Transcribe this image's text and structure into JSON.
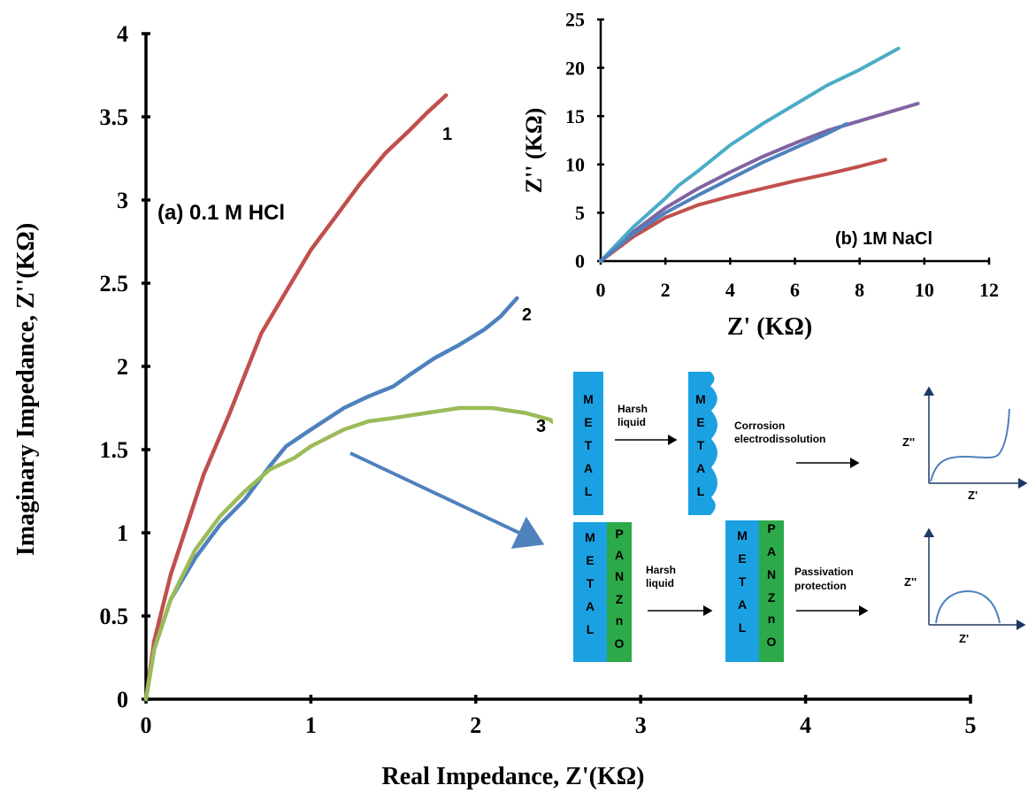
{
  "chart_data": [
    {
      "type": "line",
      "xlabel": "Real Impedance, Z'(KΩ)",
      "ylabel": "Imaginary  Impedance, Z''(KΩ)",
      "annotation": "(a) 0.1 M HCl",
      "xlim": [
        0,
        5
      ],
      "ylim": [
        0,
        4
      ],
      "x_ticks": [
        "0",
        "1",
        "2",
        "3",
        "4",
        "5"
      ],
      "y_ticks": [
        "0",
        "0.5",
        "1",
        "1.5",
        "2",
        "2.5",
        "3",
        "3.5",
        "4"
      ],
      "grid": false,
      "series": [
        {
          "name": "1",
          "color": "#c0504d",
          "points": [
            [
              0,
              0
            ],
            [
              0.05,
              0.35
            ],
            [
              0.15,
              0.75
            ],
            [
              0.25,
              1.05
            ],
            [
              0.35,
              1.35
            ],
            [
              0.5,
              1.7
            ],
            [
              0.6,
              1.95
            ],
            [
              0.7,
              2.2
            ],
            [
              0.85,
              2.45
            ],
            [
              1.0,
              2.7
            ],
            [
              1.15,
              2.9
            ],
            [
              1.3,
              3.1
            ],
            [
              1.45,
              3.28
            ],
            [
              1.6,
              3.42
            ],
            [
              1.7,
              3.52
            ],
            [
              1.82,
              3.63
            ]
          ]
        },
        {
          "name": "2",
          "color": "#4f81bd",
          "points": [
            [
              0,
              0
            ],
            [
              0.05,
              0.3
            ],
            [
              0.15,
              0.6
            ],
            [
              0.3,
              0.85
            ],
            [
              0.45,
              1.05
            ],
            [
              0.6,
              1.2
            ],
            [
              0.75,
              1.4
            ],
            [
              0.85,
              1.52
            ],
            [
              1.0,
              1.62
            ],
            [
              1.2,
              1.75
            ],
            [
              1.35,
              1.82
            ],
            [
              1.5,
              1.88
            ],
            [
              1.6,
              1.95
            ],
            [
              1.75,
              2.05
            ],
            [
              1.9,
              2.13
            ],
            [
              2.05,
              2.22
            ],
            [
              2.15,
              2.3
            ],
            [
              2.25,
              2.41
            ]
          ]
        },
        {
          "name": "3",
          "color": "#9bbb59",
          "points": [
            [
              0,
              0
            ],
            [
              0.05,
              0.3
            ],
            [
              0.15,
              0.6
            ],
            [
              0.3,
              0.9
            ],
            [
              0.45,
              1.1
            ],
            [
              0.6,
              1.25
            ],
            [
              0.75,
              1.38
            ],
            [
              0.9,
              1.45
            ],
            [
              1.0,
              1.52
            ],
            [
              1.2,
              1.62
            ],
            [
              1.35,
              1.67
            ],
            [
              1.5,
              1.69
            ],
            [
              1.7,
              1.72
            ],
            [
              1.9,
              1.75
            ],
            [
              2.1,
              1.75
            ],
            [
              2.3,
              1.72
            ],
            [
              2.45,
              1.68
            ],
            [
              2.55,
              1.6
            ]
          ]
        }
      ],
      "series_labels": [
        "1",
        "2",
        "3"
      ]
    },
    {
      "type": "line",
      "xlabel": "Z'  (KΩ)",
      "ylabel": "Z''  (KΩ)",
      "annotation": "(b) 1M NaCl",
      "xlim": [
        0,
        12
      ],
      "ylim": [
        0,
        25
      ],
      "x_ticks": [
        "0",
        "2",
        "4",
        "6",
        "8",
        "10",
        "12"
      ],
      "y_ticks": [
        "0",
        "5",
        "10",
        "15",
        "20",
        "25"
      ],
      "grid": false,
      "series": [
        {
          "color": "#c0504d",
          "points": [
            [
              0,
              0
            ],
            [
              1,
              2.5
            ],
            [
              2,
              4.5
            ],
            [
              3,
              5.8
            ],
            [
              4,
              6.7
            ],
            [
              5,
              7.5
            ],
            [
              6,
              8.3
            ],
            [
              7,
              9
            ],
            [
              8,
              9.8
            ],
            [
              8.8,
              10.5
            ]
          ]
        },
        {
          "color": "#8064a2",
          "points": [
            [
              0,
              0
            ],
            [
              1,
              3
            ],
            [
              2,
              5.5
            ],
            [
              3,
              7.5
            ],
            [
              4,
              9.2
            ],
            [
              5,
              10.8
            ],
            [
              6,
              12.2
            ],
            [
              7,
              13.5
            ],
            [
              8,
              14.5
            ],
            [
              9,
              15.5
            ],
            [
              9.8,
              16.3
            ]
          ]
        },
        {
          "color": "#4bacc6",
          "points": [
            [
              0,
              0
            ],
            [
              1,
              3.5
            ],
            [
              2,
              6.5
            ],
            [
              2.4,
              7.8
            ],
            [
              3,
              9.3
            ],
            [
              4,
              12
            ],
            [
              5,
              14.2
            ],
            [
              6,
              16.2
            ],
            [
              7,
              18.2
            ],
            [
              8,
              19.8
            ],
            [
              9.2,
              22
            ]
          ]
        },
        {
          "color": "#4f81bd",
          "points": [
            [
              0,
              0
            ],
            [
              1,
              2.8
            ],
            [
              2,
              5
            ],
            [
              3,
              6.8
            ],
            [
              4,
              8.5
            ],
            [
              5,
              10.2
            ],
            [
              6,
              11.7
            ],
            [
              7,
              13.2
            ],
            [
              7.6,
              14.2
            ]
          ]
        }
      ]
    }
  ],
  "diagram": {
    "metal_letters": [
      "M",
      "E",
      "T",
      "A",
      "L"
    ],
    "coating_letters": [
      "P",
      "A",
      "N",
      "Z",
      "n",
      "O"
    ],
    "harsh_liquid_line1": "Harsh",
    "harsh_liquid_line2": "liquid",
    "corrosion_line1": "Corrosion",
    "corrosion_line2": "electrodissolution",
    "passivation_line1": "Passivation",
    "passivation_line2": "protection",
    "axis_z_double": "Z''",
    "axis_z_single": "Z'",
    "colors": {
      "metal": "#1ba1e2",
      "coating": "#2ca948",
      "curve": "#4f81bd"
    }
  }
}
